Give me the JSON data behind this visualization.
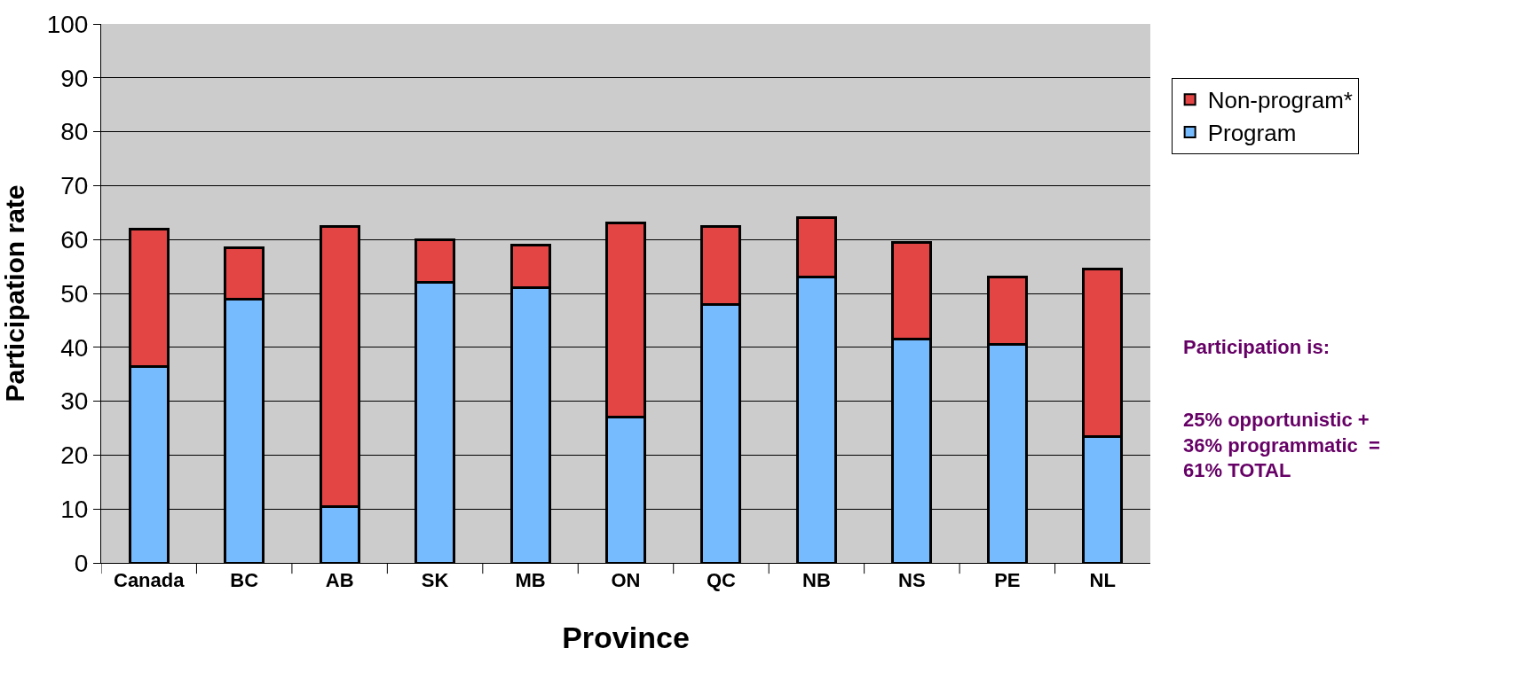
{
  "chart_data": {
    "type": "bar",
    "stacked": true,
    "xlabel": "Province",
    "ylabel": "Participation rate",
    "categories": [
      "Canada",
      "BC",
      "AB",
      "SK",
      "MB",
      "ON",
      "QC",
      "NB",
      "NS",
      "PE",
      "NL"
    ],
    "series": [
      {
        "name": "Program",
        "color": "#77bbff",
        "values": [
          36.5,
          49,
          10.5,
          52,
          51,
          27,
          48,
          53,
          41.5,
          40.5,
          23.5
        ]
      },
      {
        "name": "Non-program*",
        "color": "#e34444",
        "values": [
          25.5,
          9.5,
          52,
          8,
          8,
          36,
          14.5,
          11,
          18,
          12.5,
          31
        ]
      }
    ],
    "ylim": [
      0,
      100
    ],
    "yticks": [
      0,
      10,
      20,
      30,
      40,
      50,
      60,
      70,
      80,
      90,
      100
    ],
    "grid": "y",
    "legend": "right",
    "annotations": [
      "Participation is:",
      "25% opportunistic +\n36% programmatic  =\n61% TOTAL"
    ]
  }
}
